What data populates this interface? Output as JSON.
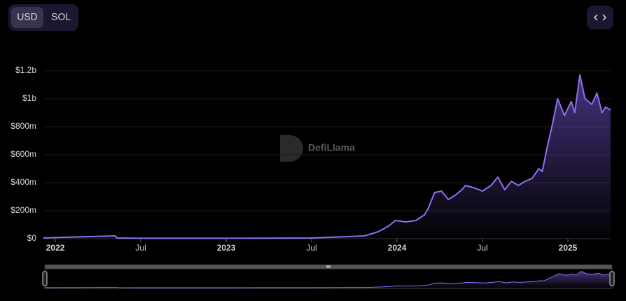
{
  "currency_toggle": [
    "USD",
    "SOL"
  ],
  "watermark": "DefiLlama",
  "chart_data": {
    "type": "area",
    "series": [
      {
        "color": "#8f6ff2",
        "x": [
          2021.93,
          2022.0,
          2022.2,
          2022.3,
          2022.35,
          2022.36,
          2022.5,
          2023.0,
          2023.5,
          2023.81,
          2023.89,
          2023.95,
          2023.99,
          2024.05,
          2024.11,
          2024.16,
          2024.18,
          2024.22,
          2024.26,
          2024.3,
          2024.34,
          2024.38,
          2024.4,
          2024.46,
          2024.5,
          2024.55,
          2024.59,
          2024.63,
          2024.67,
          2024.71,
          2024.75,
          2024.79,
          2024.83,
          2024.85,
          2024.88,
          2024.91,
          2024.94,
          2024.98,
          2025.02,
          2025.04,
          2025.07,
          2025.1,
          2025.14,
          2025.17,
          2025.2,
          2025.22,
          2025.25
        ],
        "values": [
          5000000,
          8000000,
          15000000,
          18000000,
          20000000,
          5000000,
          3000000,
          3000000,
          5000000,
          20000000,
          50000000,
          90000000,
          130000000,
          120000000,
          130000000,
          170000000,
          210000000,
          330000000,
          340000000,
          280000000,
          310000000,
          350000000,
          380000000,
          360000000,
          340000000,
          380000000,
          440000000,
          350000000,
          410000000,
          380000000,
          410000000,
          430000000,
          500000000,
          480000000,
          660000000,
          820000000,
          1000000000,
          880000000,
          980000000,
          900000000,
          1170000000,
          1000000000,
          960000000,
          1040000000,
          900000000,
          940000000,
          920000000
        ]
      }
    ],
    "xlim": [
      2021.93,
      2025.25
    ],
    "xticks": [
      {
        "value": 2022,
        "label": "2022"
      },
      {
        "value": 2022.5,
        "label": "Jul"
      },
      {
        "value": 2023,
        "label": "2023"
      },
      {
        "value": 2023.5,
        "label": "Jul"
      },
      {
        "value": 2024,
        "label": "2024"
      },
      {
        "value": 2024.5,
        "label": "Jul"
      },
      {
        "value": 2025,
        "label": "2025"
      }
    ],
    "ylim": [
      0,
      1200000000
    ],
    "yticks": [
      {
        "value": 0,
        "label": "$0"
      },
      {
        "value": 200000000,
        "label": "$200m"
      },
      {
        "value": 400000000,
        "label": "$400m"
      },
      {
        "value": 600000000,
        "label": "$600m"
      },
      {
        "value": 800000000,
        "label": "$800m"
      },
      {
        "value": 1000000000,
        "label": "$1b"
      },
      {
        "value": 1200000000,
        "label": "$1.2b"
      }
    ],
    "grid": true
  }
}
